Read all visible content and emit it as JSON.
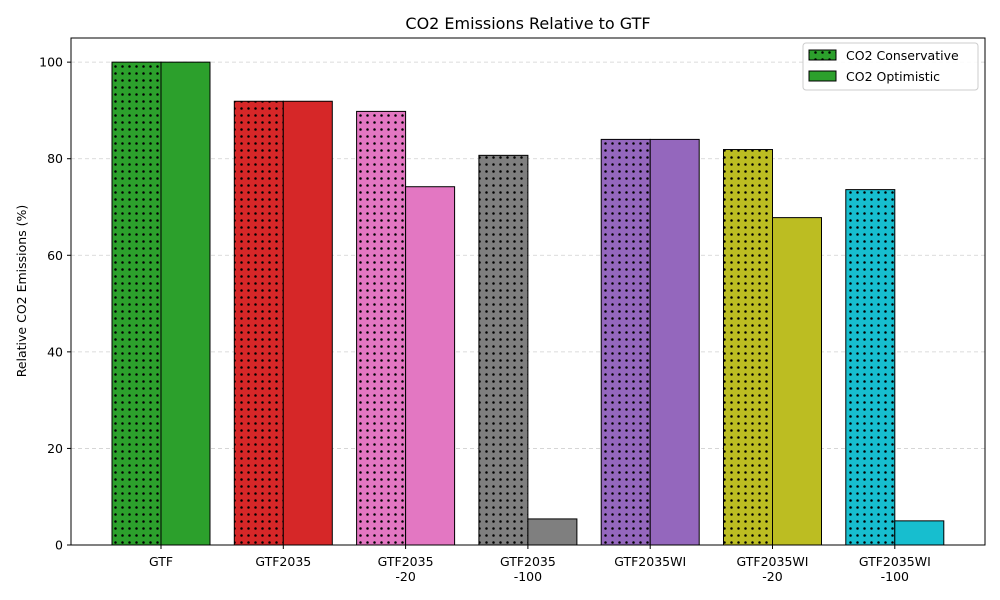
{
  "chart_data": {
    "type": "bar",
    "title": "CO2 Emissions Relative to GTF",
    "xlabel": "",
    "ylabel": "Relative CO2 Emissions (%)",
    "ylim": [
      0,
      105
    ],
    "yticks": [
      0,
      20,
      40,
      60,
      80,
      100
    ],
    "grid": "y-dashed",
    "legend_position": "top-right",
    "categories": [
      [
        "GTF"
      ],
      [
        "GTF2035"
      ],
      [
        "GTF2035",
        "-20"
      ],
      [
        "GTF2035",
        "-100"
      ],
      [
        "GTF2035WI"
      ],
      [
        "GTF2035WI",
        "-20"
      ],
      [
        "GTF2035WI",
        "-100"
      ]
    ],
    "category_colors": [
      "#2ca02c",
      "#d62728",
      "#e377c2",
      "#7f7f7f",
      "#9467bd",
      "#bcbd22",
      "#17becf"
    ],
    "series": [
      {
        "name": "CO2 Conservative",
        "pattern": "dots",
        "values": [
          100,
          91.9,
          89.8,
          80.7,
          84.0,
          81.9,
          73.6
        ]
      },
      {
        "name": "CO2 Optimistic",
        "pattern": "solid",
        "values": [
          100,
          91.9,
          74.2,
          5.4,
          84.0,
          67.8,
          5.0
        ]
      }
    ],
    "legend_color": "#2ca02c"
  }
}
